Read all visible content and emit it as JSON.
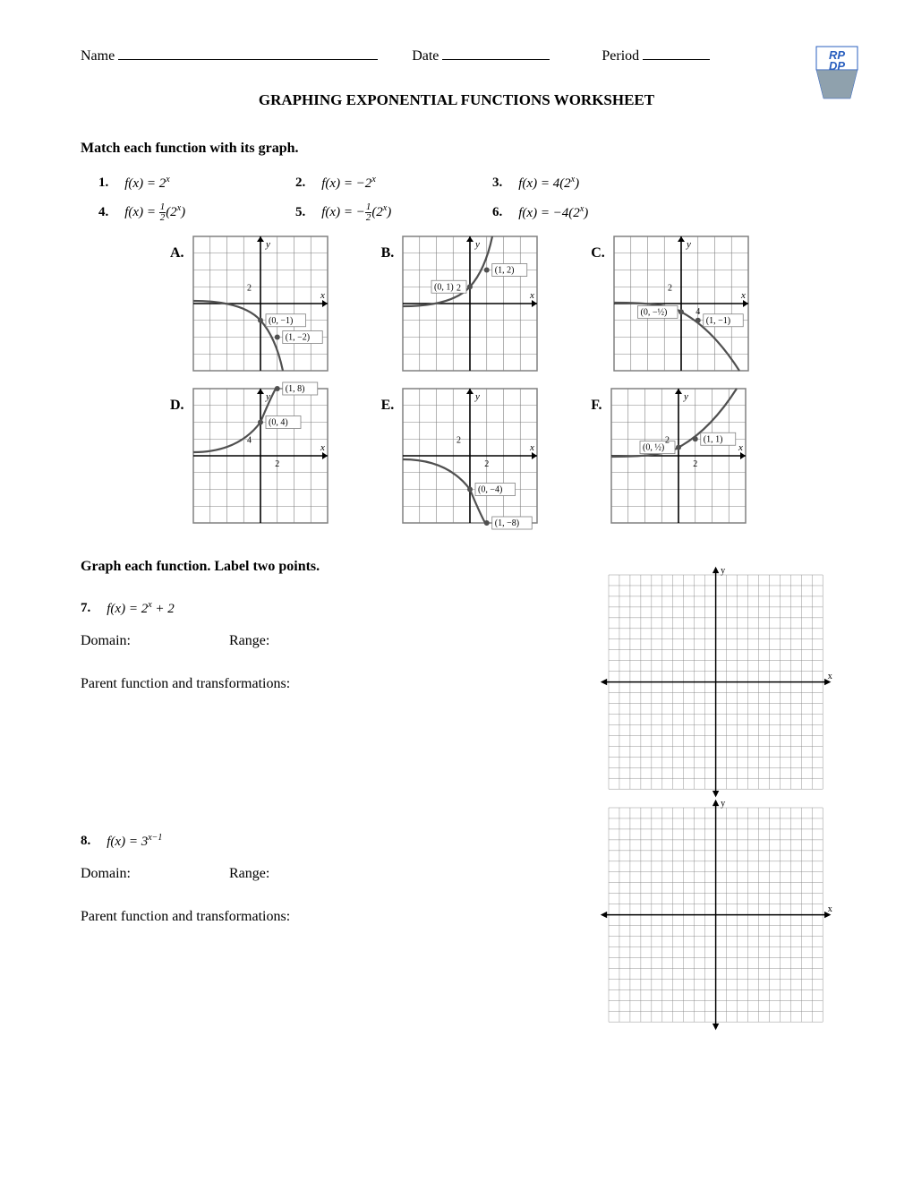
{
  "header": {
    "name_label": "Name",
    "date_label": "Date",
    "period_label": "Period",
    "logo_text": "RP DP"
  },
  "title": "GRAPHING EXPONENTIAL FUNCTIONS WORKSHEET",
  "section1": "Match each function with its graph.",
  "functions": [
    {
      "num": "1.",
      "expr": "f(x) = 2",
      "sup": "x"
    },
    {
      "num": "2.",
      "expr": "f(x) = −2",
      "sup": "x"
    },
    {
      "num": "3.",
      "expr": "f(x) = 4(2",
      "sup": "x",
      "close": ")"
    },
    {
      "num": "4.",
      "expr_pre": "f(x) = ",
      "frac_n": "1",
      "frac_d": "2",
      "expr_post": "(2",
      "sup": "x",
      "close": ")"
    },
    {
      "num": "5.",
      "expr_pre": "f(x) = −",
      "frac_n": "1",
      "frac_d": "2",
      "expr_post": "(2",
      "sup": "x",
      "close": ")"
    },
    {
      "num": "6.",
      "expr": "f(x) = −4(2",
      "sup": "x",
      "close": ")"
    }
  ],
  "graphs": {
    "row1": [
      {
        "label": "A.",
        "points": [
          "(0, −1)",
          "(1, −2)"
        ],
        "ytick": "2",
        "axis_label_x": "x",
        "axis_label_y": "y",
        "curve": "neg-slow"
      },
      {
        "label": "B.",
        "points": [
          "(0, 1)",
          "(1, 2)"
        ],
        "ytick": "2",
        "axis_label_x": "x",
        "axis_label_y": "y",
        "curve": "pos-slow"
      },
      {
        "label": "C.",
        "points": [
          "(0, −½)",
          "(1, −1)"
        ],
        "ytick": "2",
        "xtick": "4",
        "axis_label_x": "x",
        "axis_label_y": "y",
        "curve": "neg-very-slow"
      }
    ],
    "row2": [
      {
        "label": "D.",
        "points": [
          "(0, 4)",
          "(1, 8)"
        ],
        "ytick": "4",
        "xtick": "2",
        "axis_label_x": "x",
        "axis_label_y": "y",
        "curve": "pos-fast"
      },
      {
        "label": "E.",
        "points": [
          "(0, −4)",
          "(1, −8)"
        ],
        "ytick": "2",
        "xtick": "2",
        "axis_label_x": "x",
        "axis_label_y": "y",
        "curve": "neg-fast"
      },
      {
        "label": "F.",
        "points": [
          "(0, ½)",
          "(1, 1)"
        ],
        "ytick": "2",
        "xtick": "2",
        "axis_label_x": "x",
        "axis_label_y": "y",
        "curve": "pos-very-slow"
      }
    ]
  },
  "section2": "Graph each function.  Label two points.",
  "q7": {
    "num": "7.",
    "expr": "f(x) = 2",
    "sup": "x",
    "tail": " + 2",
    "domain_label": "Domain:",
    "range_label": "Range:",
    "parent_label": "Parent function and transformations:"
  },
  "q8": {
    "num": "8.",
    "expr": "f(x) = 3",
    "sup": "x−1",
    "domain_label": "Domain:",
    "range_label": "Range:",
    "parent_label": "Parent function and transformations:"
  },
  "blank_grid": {
    "axis_y": "y",
    "axis_x": "x",
    "cells": 20,
    "line_color": "#888",
    "axis_color": "#000"
  },
  "colors": {
    "grid": "#808080",
    "curve": "#505050",
    "text": "#000000",
    "logo_blue": "#2a5fbf",
    "logo_grey": "#8fa1ad"
  }
}
